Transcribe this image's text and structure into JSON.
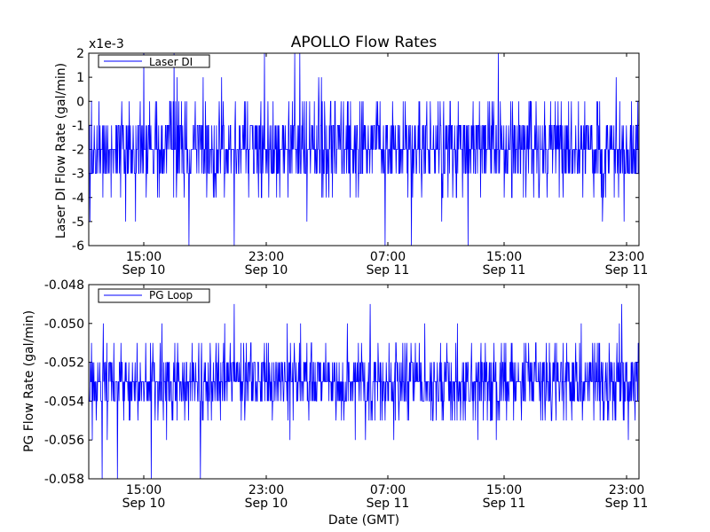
{
  "title": "APOLLO Flow Rates",
  "xlabel": "Date (GMT)",
  "colors": {
    "line": "#0000ff",
    "frame": "#000000",
    "background": "#ffffff"
  },
  "x_ticks": [
    {
      "time": "15:00",
      "date": "Sep 10"
    },
    {
      "time": "23:00",
      "date": "Sep 10"
    },
    {
      "time": "07:00",
      "date": "Sep 11"
    },
    {
      "time": "15:00",
      "date": "Sep 11"
    },
    {
      "time": "23:00",
      "date": "Sep 11"
    }
  ],
  "chart_data": [
    {
      "type": "line",
      "ylabel": "Laser DI Flow Rate (gal/min)",
      "y_multiplier": "x1e-3",
      "ylim": [
        -6,
        2
      ],
      "yticks": [
        "2",
        "1",
        "0",
        "-1",
        "-2",
        "-3",
        "-4",
        "-5",
        "-6"
      ],
      "legend": {
        "position": "top-left",
        "entries": [
          "Laser DI"
        ]
      },
      "series": [
        {
          "name": "Laser DI",
          "summary": {
            "baseline_band": [
              -3,
              -1
            ],
            "typical": -2,
            "min": -6,
            "max": 2,
            "quantization": 1
          },
          "spikes_up": [
            {
              "time": "Sep 10 15:00",
              "value": 2
            },
            {
              "time": "Sep 10 17:00",
              "value": 2
            },
            {
              "time": "Sep 10 23:00",
              "value": 2
            },
            {
              "time": "Sep 11 01:00",
              "value": 2
            },
            {
              "time": "Sep 11 01:20",
              "value": 2
            },
            {
              "time": "Sep 11 14:30",
              "value": 2
            }
          ],
          "spikes_down": [
            {
              "time": "Sep 10 18:00",
              "value": -6
            },
            {
              "time": "Sep 10 21:00",
              "value": -6
            },
            {
              "time": "Sep 11 07:00",
              "value": -6
            },
            {
              "time": "Sep 11 08:45",
              "value": -6
            },
            {
              "time": "Sep 11 12:30",
              "value": -6
            }
          ]
        }
      ]
    },
    {
      "type": "line",
      "ylabel": "PG Flow Rate (gal/min)",
      "ylim": [
        -0.058,
        -0.048
      ],
      "yticks": [
        "-0.048",
        "-0.050",
        "-0.052",
        "-0.054",
        "-0.056",
        "-0.058"
      ],
      "legend": {
        "position": "top-left",
        "entries": [
          "PG Loop"
        ]
      },
      "series": [
        {
          "name": "PG Loop",
          "summary": {
            "baseline_band": [
              -0.054,
              -0.052
            ],
            "typical": -0.053,
            "min": -0.058,
            "max": -0.049,
            "quantization": 0.001
          },
          "spikes_up": [
            {
              "time": "Sep 10 15:30",
              "value": -0.049
            },
            {
              "time": "Sep 10 21:00",
              "value": -0.049
            },
            {
              "time": "Sep 11 06:00",
              "value": -0.049
            },
            {
              "time": "Sep 11 22:40",
              "value": -0.049
            }
          ],
          "spikes_down": [
            {
              "time": "Sep 10 12:15",
              "value": -0.058
            },
            {
              "time": "Sep 10 13:15",
              "value": -0.058
            },
            {
              "time": "Sep 10 15:30",
              "value": -0.058
            },
            {
              "time": "Sep 10 18:45",
              "value": -0.058
            }
          ]
        }
      ]
    }
  ]
}
